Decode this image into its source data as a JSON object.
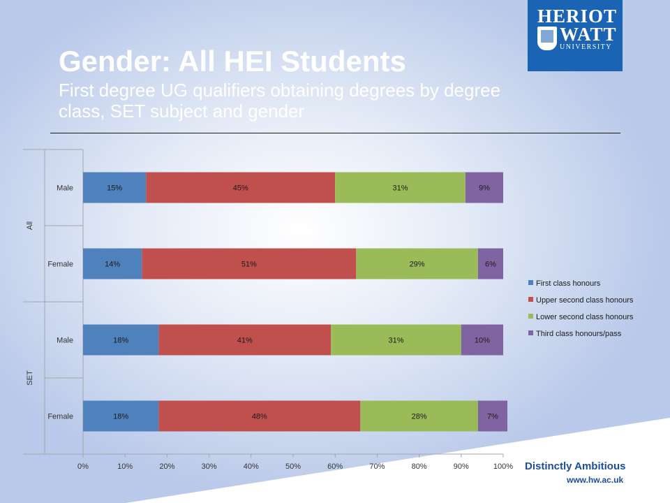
{
  "header": {
    "title": "Gender: All HEI Students",
    "subtitle": "First degree UG qualifiers obtaining degrees by degree class, SET subject and gender"
  },
  "logo": {
    "line1": "HERIOT",
    "line2": "WATT",
    "line3": "UNIVERSITY"
  },
  "footer": {
    "tagline": "Distinctly Ambitious",
    "url": "www.hw.ac.uk"
  },
  "colors": {
    "first": "#4f81bd",
    "upper": "#c0504d",
    "lower": "#9bbb59",
    "third": "#8064a2",
    "brand": "#1b63b3"
  },
  "chart_data": {
    "type": "bar",
    "orientation": "horizontal",
    "stacked": true,
    "percent": true,
    "groups": [
      {
        "name": "All",
        "categories": [
          "Male",
          "Female"
        ]
      },
      {
        "name": "SET",
        "categories": [
          "Male",
          "Female"
        ]
      }
    ],
    "categories": [
      "Male",
      "Female",
      "Male",
      "Female"
    ],
    "series": [
      {
        "name": "First class honours",
        "values": [
          15,
          14,
          18,
          18
        ]
      },
      {
        "name": "Upper second class honours",
        "values": [
          45,
          51,
          41,
          48
        ]
      },
      {
        "name": "Lower second class honours",
        "values": [
          31,
          29,
          31,
          28
        ]
      },
      {
        "name": "Third class honours/pass",
        "values": [
          9,
          6,
          10,
          7
        ]
      }
    ],
    "xlim": [
      0,
      100
    ],
    "xticks": [
      "0%",
      "10%",
      "20%",
      "30%",
      "40%",
      "50%",
      "60%",
      "70%",
      "80%",
      "90%",
      "100%"
    ],
    "grid": false,
    "legend": "right"
  }
}
